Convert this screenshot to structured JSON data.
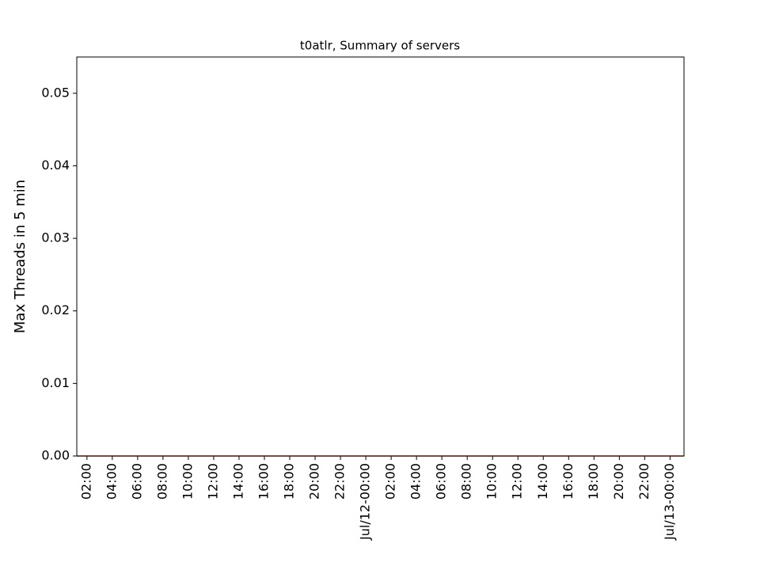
{
  "chart_data": {
    "type": "line",
    "title": "t0atlr, Summary of servers",
    "y_label": "Max Threads in 5 min",
    "x": [
      1.2,
      49.1
    ],
    "series": [
      {
        "name": "servers",
        "color": "#c0392b",
        "values": [
          0,
          0
        ]
      }
    ],
    "xlim": [
      1.2,
      49.1
    ],
    "xticks": [
      {
        "value": 2,
        "label": "02:00"
      },
      {
        "value": 4,
        "label": "04:00"
      },
      {
        "value": 6,
        "label": "06:00"
      },
      {
        "value": 8,
        "label": "08:00"
      },
      {
        "value": 10,
        "label": "10:00"
      },
      {
        "value": 12,
        "label": "12:00"
      },
      {
        "value": 14,
        "label": "14:00"
      },
      {
        "value": 16,
        "label": "16:00"
      },
      {
        "value": 18,
        "label": "18:00"
      },
      {
        "value": 20,
        "label": "20:00"
      },
      {
        "value": 22,
        "label": "22:00"
      },
      {
        "value": 24,
        "label": "Jul/12-00:00"
      },
      {
        "value": 26,
        "label": "02:00"
      },
      {
        "value": 28,
        "label": "04:00"
      },
      {
        "value": 30,
        "label": "06:00"
      },
      {
        "value": 32,
        "label": "08:00"
      },
      {
        "value": 34,
        "label": "10:00"
      },
      {
        "value": 36,
        "label": "12:00"
      },
      {
        "value": 38,
        "label": "14:00"
      },
      {
        "value": 40,
        "label": "16:00"
      },
      {
        "value": 42,
        "label": "18:00"
      },
      {
        "value": 44,
        "label": "20:00"
      },
      {
        "value": 46,
        "label": "22:00"
      },
      {
        "value": 48,
        "label": "Jul/13-00:00"
      }
    ],
    "ylim": [
      0,
      0.055
    ],
    "yticks": [
      {
        "value": 0,
        "label": "0.00"
      },
      {
        "value": 0.01,
        "label": "0.01"
      },
      {
        "value": 0.02,
        "label": "0.02"
      },
      {
        "value": 0.03,
        "label": "0.03"
      },
      {
        "value": 0.04,
        "label": "0.04"
      },
      {
        "value": 0.05,
        "label": "0.05"
      }
    ],
    "grid": false
  }
}
